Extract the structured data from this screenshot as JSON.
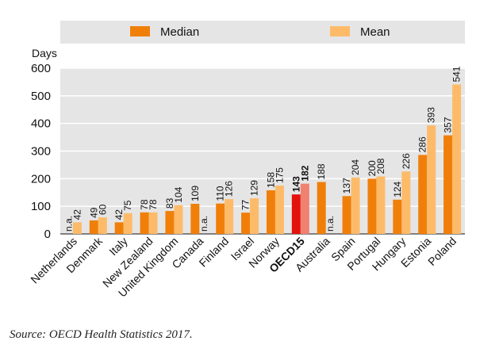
{
  "chart_data": {
    "type": "bar",
    "ylabel": "Days",
    "ylim": [
      0,
      600
    ],
    "yticks": [
      0,
      100,
      200,
      300,
      400,
      500,
      600
    ],
    "legend_position": "top",
    "categories": [
      "Netherlands",
      "Denmark",
      "Italy",
      "New Zealand",
      "United Kingdom",
      "Canada",
      "Finland",
      "Israel",
      "Norway",
      "OECD15",
      "Australia",
      "Spain",
      "Portugal",
      "Hungary",
      "Estonia",
      "Poland"
    ],
    "highlight_category": "OECD15",
    "series": [
      {
        "name": "Median",
        "color": "#f07f0a",
        "highlight_color": "#e3120b",
        "values": [
          null,
          49,
          42,
          78,
          83,
          109,
          110,
          77,
          158,
          143,
          188,
          137,
          200,
          124,
          286,
          357
        ],
        "labels": [
          "n.a.",
          "49",
          "42",
          "78",
          "83",
          "109",
          "110",
          "77",
          "158",
          "143",
          "188",
          "137",
          "200",
          "124",
          "286",
          "357"
        ]
      },
      {
        "name": "Mean",
        "color": "#fdbb6a",
        "highlight_color": "#f08070",
        "values": [
          42,
          60,
          75,
          78,
          104,
          null,
          126,
          129,
          175,
          182,
          null,
          204,
          208,
          226,
          393,
          541
        ],
        "labels": [
          "42",
          "60",
          "75",
          "78",
          "104",
          "n.a.",
          "126",
          "129",
          "175",
          "182",
          "n.a.",
          "204",
          "208",
          "226",
          "393",
          "541"
        ]
      }
    ]
  },
  "source": "Source: OECD Health Statistics 2017."
}
